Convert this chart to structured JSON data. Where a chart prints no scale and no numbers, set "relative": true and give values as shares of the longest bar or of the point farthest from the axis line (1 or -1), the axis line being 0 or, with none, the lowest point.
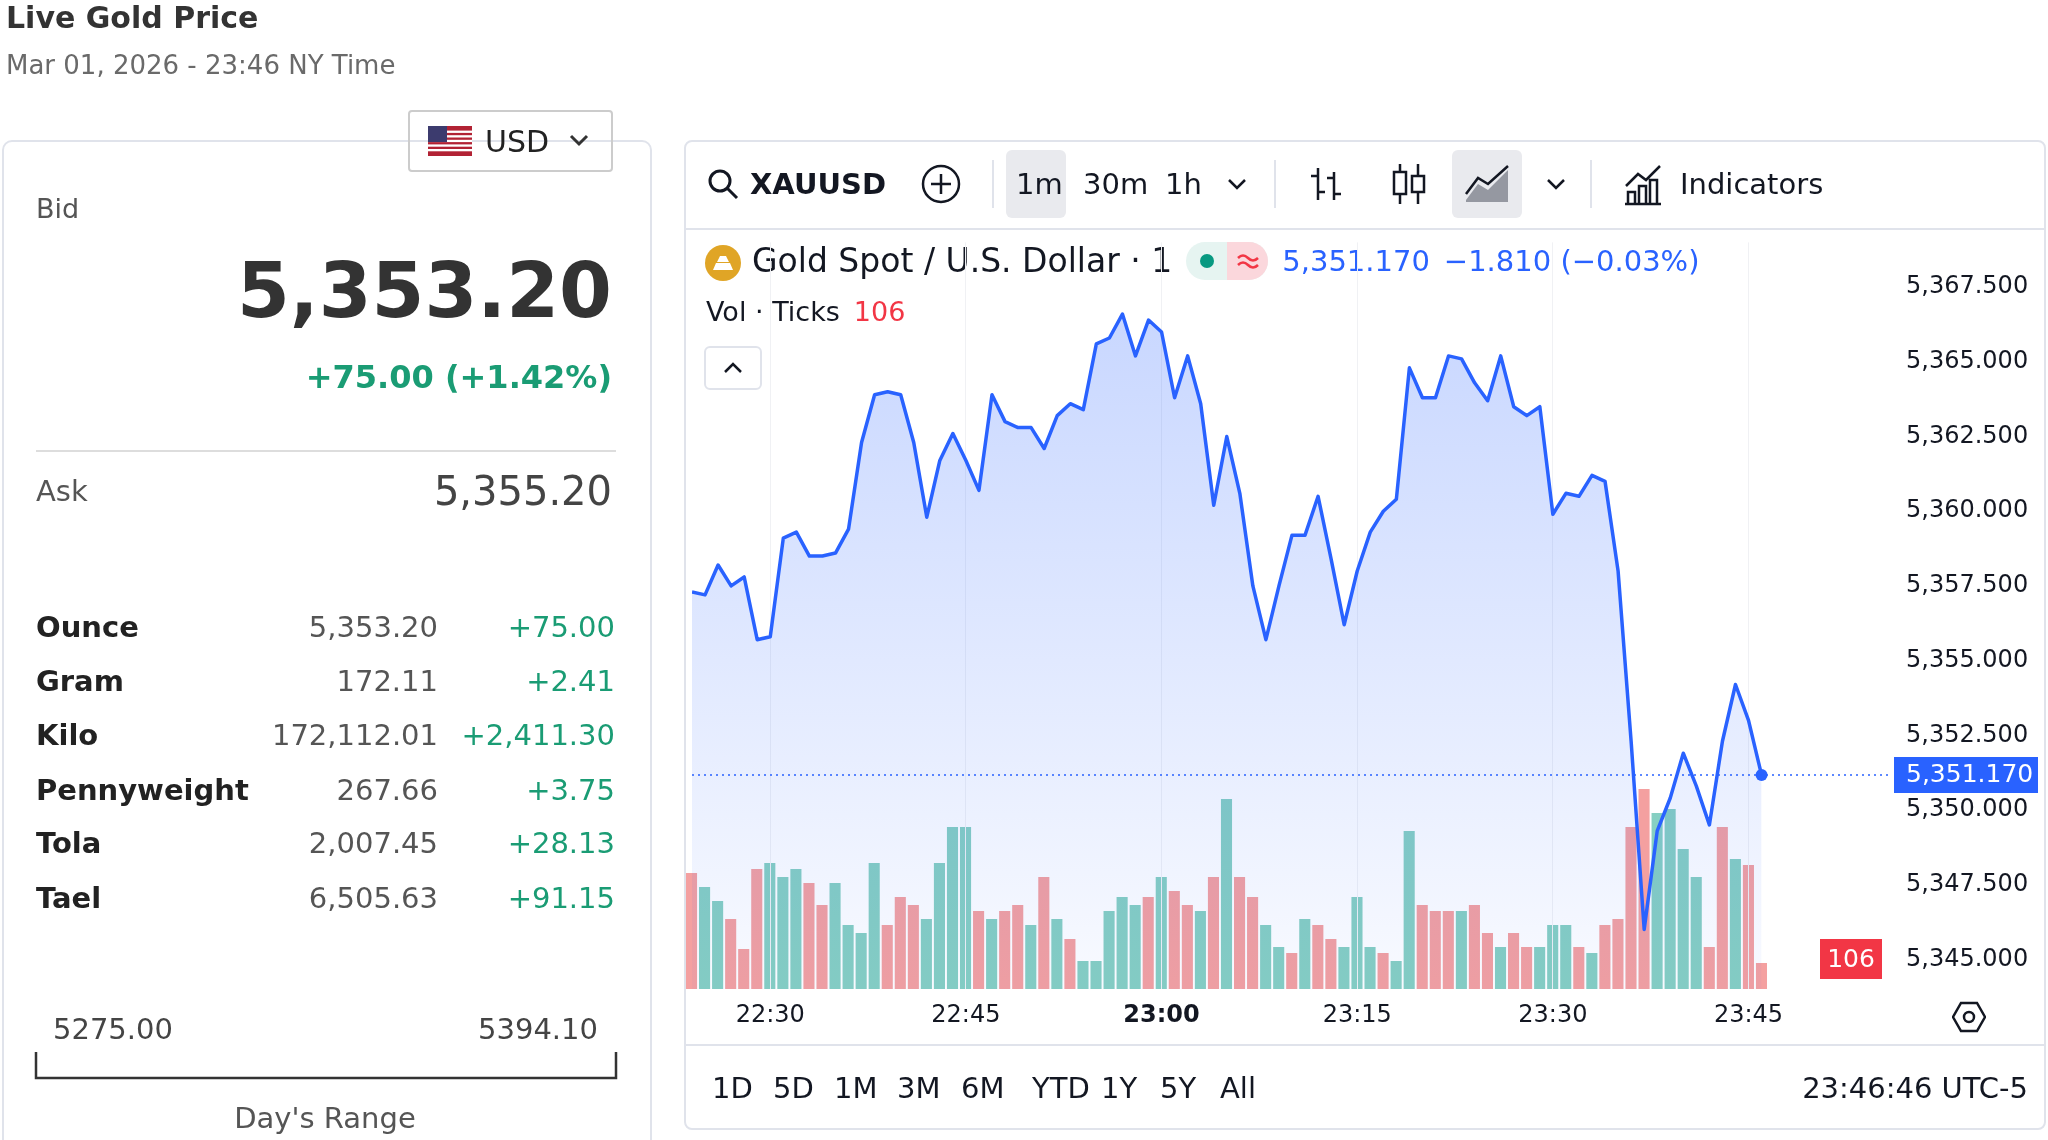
{
  "chart_data": [
    {
      "type": "other",
      "title": "Live Gold Price",
      "subtitle": "Mar 01, 2026 - 23:46 NY Time",
      "annotations": [
        "USD",
        "Bid",
        "5,353.20",
        "+75.00 (+1.42%)",
        "Ask",
        "5,355.20",
        "Ounce",
        "5,353.20",
        "+75.00",
        "Gram",
        "172.11",
        "+2.41",
        "Kilo",
        "172,112.01",
        "+2,411.30",
        "Pennyweight",
        "267.66",
        "+3.75",
        "Tola",
        "2,007.45",
        "+28.13",
        "Tael",
        "6,505.63",
        "+91.15",
        "5275.00",
        "5394.10",
        "Day's Range"
      ]
    },
    {
      "type": "area",
      "title": "Gold Spot / U.S. Dollar · 1",
      "color": "#2962ff",
      "annotations": [
        "XAUUSD",
        "1m",
        "30m",
        "1h",
        "Indicators",
        "5,351.170",
        "−1.810 (−0.03%)",
        "1D",
        "5D",
        "1M",
        "3M",
        "6M",
        "YTD",
        "1Y",
        "5Y",
        "All",
        "23:46:46 UTC-5"
      ],
      "x": [
        "2026-03-01T22:24",
        "2026-03-01T22:25",
        "2026-03-01T22:26",
        "2026-03-01T22:27",
        "2026-03-01T22:28",
        "2026-03-01T22:29",
        "2026-03-01T22:30",
        "2026-03-01T22:31",
        "2026-03-01T22:32",
        "2026-03-01T22:33",
        "2026-03-01T22:34",
        "2026-03-01T22:35",
        "2026-03-01T22:36",
        "2026-03-01T22:37",
        "2026-03-01T22:38",
        "2026-03-01T22:39",
        "2026-03-01T22:40",
        "2026-03-01T22:41",
        "2026-03-01T22:42",
        "2026-03-01T22:43",
        "2026-03-01T22:44",
        "2026-03-01T22:45",
        "2026-03-01T22:46",
        "2026-03-01T22:47",
        "2026-03-01T22:48",
        "2026-03-01T22:49",
        "2026-03-01T22:50",
        "2026-03-01T22:51",
        "2026-03-01T22:52",
        "2026-03-01T22:53",
        "2026-03-01T22:54",
        "2026-03-01T22:55",
        "2026-03-01T22:56",
        "2026-03-01T22:57",
        "2026-03-01T22:58",
        "2026-03-01T22:59",
        "2026-03-01T23:00",
        "2026-03-01T23:01",
        "2026-03-01T23:02",
        "2026-03-01T23:03",
        "2026-03-01T23:04",
        "2026-03-01T23:05",
        "2026-03-01T23:06",
        "2026-03-01T23:07",
        "2026-03-01T23:08",
        "2026-03-01T23:09",
        "2026-03-01T23:10",
        "2026-03-01T23:11",
        "2026-03-01T23:12",
        "2026-03-01T23:13",
        "2026-03-01T23:14",
        "2026-03-01T23:15",
        "2026-03-01T23:16",
        "2026-03-01T23:17",
        "2026-03-01T23:18",
        "2026-03-01T23:19",
        "2026-03-01T23:20",
        "2026-03-01T23:21",
        "2026-03-01T23:22",
        "2026-03-01T23:23",
        "2026-03-01T23:24",
        "2026-03-01T23:25",
        "2026-03-01T23:26",
        "2026-03-01T23:27",
        "2026-03-01T23:28",
        "2026-03-01T23:29",
        "2026-03-01T23:30",
        "2026-03-01T23:31",
        "2026-03-01T23:32",
        "2026-03-01T23:33",
        "2026-03-01T23:34",
        "2026-03-01T23:35",
        "2026-03-01T23:36",
        "2026-03-01T23:37",
        "2026-03-01T23:38",
        "2026-03-01T23:39",
        "2026-03-01T23:40",
        "2026-03-01T23:41",
        "2026-03-01T23:42",
        "2026-03-01T23:43",
        "2026-03-01T23:44",
        "2026-03-01T23:45",
        "2026-03-01T23:46"
      ],
      "values": [
        5357.3,
        5357.2,
        5358.2,
        5357.5,
        5357.8,
        5355.7,
        5355.8,
        5359.1,
        5359.3,
        5358.5,
        5358.5,
        5358.6,
        5359.4,
        5362.3,
        5363.9,
        5364.0,
        5363.9,
        5362.3,
        5359.8,
        5361.7,
        5362.6,
        5361.7,
        5360.7,
        5363.9,
        5363.0,
        5362.8,
        5362.8,
        5362.1,
        5363.2,
        5363.6,
        5363.4,
        5365.6,
        5365.8,
        5366.6,
        5365.2,
        5366.4,
        5366.0,
        5363.8,
        5365.2,
        5363.6,
        5360.2,
        5362.5,
        5360.6,
        5357.5,
        5355.7,
        5357.5,
        5359.2,
        5359.2,
        5360.5,
        5358.4,
        5356.2,
        5358.0,
        5359.3,
        5360.0,
        5360.4,
        5364.8,
        5363.8,
        5363.8,
        5365.2,
        5365.1,
        5364.3,
        5363.7,
        5365.2,
        5363.5,
        5363.2,
        5363.5,
        5359.9,
        5360.6,
        5360.5,
        5361.2,
        5361.0,
        5358.0,
        5352.3,
        5346.0,
        5349.3,
        5350.4,
        5351.9,
        5350.8,
        5349.5,
        5352.3,
        5354.2,
        5353.0,
        5351.17
      ],
      "xlim": [
        "2026-03-01T22:24",
        "2026-03-01T23:56"
      ],
      "xticks": [
        {
          "value": "2026-03-01T22:30",
          "label": "22:30"
        },
        {
          "value": "2026-03-01T22:45",
          "label": "22:45"
        },
        {
          "value": "2026-03-01T23:00",
          "label": "23:00"
        },
        {
          "value": "2026-03-01T23:15",
          "label": "23:15"
        },
        {
          "value": "2026-03-01T23:30",
          "label": "23:30"
        },
        {
          "value": "2026-03-01T23:45",
          "label": "23:45"
        }
      ],
      "ylim": [
        5344,
        5369
      ],
      "yticks": [
        {
          "value": 5345,
          "label": "5,345.000"
        },
        {
          "value": 5347.5,
          "label": "5,347.500"
        },
        {
          "value": 5350,
          "label": "5,350.000"
        },
        {
          "value": 5352.5,
          "label": "5,352.500"
        },
        {
          "value": 5355,
          "label": "5,355.000"
        },
        {
          "value": 5357.5,
          "label": "5,357.500"
        },
        {
          "value": 5360,
          "label": "5,360.000"
        },
        {
          "value": 5362.5,
          "label": "5,362.500"
        },
        {
          "value": 5365,
          "label": "5,365.000"
        },
        {
          "value": 5367.5,
          "label": "5,367.500"
        }
      ],
      "grid": "x",
      "ref_lines": [
        {
          "axis": "y",
          "value": 5351.17,
          "label": "5,351.170",
          "color": "#2962ff",
          "line_style": "dotted"
        }
      ]
    },
    {
      "type": "bar",
      "title": "Vol · Ticks",
      "relative": true,
      "annotations": [
        "106",
        "106"
      ],
      "categories": [
        null,
        null,
        null,
        null,
        null,
        null,
        null,
        null,
        null,
        null,
        null,
        null,
        null,
        null,
        null,
        null,
        null,
        null,
        null,
        null,
        null,
        null,
        null,
        null,
        null,
        null,
        null,
        null,
        null,
        null,
        null,
        null,
        null,
        null,
        null,
        null,
        null,
        null,
        null,
        null,
        null,
        null,
        null,
        null,
        null,
        null,
        null,
        null,
        null,
        null,
        null,
        null,
        null,
        null,
        null,
        null,
        null,
        null,
        null,
        null,
        null,
        null,
        null,
        null,
        null,
        null,
        null,
        null,
        null,
        null,
        null,
        null,
        null,
        null,
        null,
        null,
        null,
        null,
        null,
        null,
        null,
        null,
        null
      ],
      "values": [
        0.58,
        0.51,
        0.44,
        0.35,
        0.2,
        0.6,
        0.63,
        0.56,
        0.6,
        0.53,
        0.42,
        0.53,
        0.32,
        0.28,
        0.63,
        0.32,
        0.46,
        0.42,
        0.35,
        0.63,
        0.81,
        0.81,
        0.39,
        0.35,
        0.39,
        0.42,
        0.32,
        0.56,
        0.35,
        0.25,
        0.14,
        0.14,
        0.39,
        0.46,
        0.42,
        0.46,
        0.56,
        0.49,
        0.42,
        0.39,
        0.56,
        0.95,
        0.56,
        0.46,
        0.32,
        0.21,
        0.18,
        0.35,
        0.32,
        0.25,
        0.21,
        0.46,
        0.21,
        0.18,
        0.14,
        0.79,
        0.42,
        0.39,
        0.39,
        0.39,
        0.42,
        0.28,
        0.21,
        0.28,
        0.21,
        0.21,
        0.32,
        0.32,
        0.21,
        0.18,
        0.32,
        0.35,
        0.81,
        1,
        0.88,
        0.9,
        0.7,
        0.56,
        0.21,
        0.81,
        0.65,
        0.62,
        0.13
      ],
      "colors": [
        "#f4a0a0",
        "#86cfc2",
        "#86cfc2",
        "#f4a0a0",
        "#f4a0a0",
        "#f4a0a0",
        "#86cfc2",
        "#86cfc2",
        "#86cfc2",
        "#f4a0a0",
        "#f4a0a0",
        "#86cfc2",
        "#86cfc2",
        "#86cfc2",
        "#86cfc2",
        "#f4a0a0",
        "#f4a0a0",
        "#f4a0a0",
        "#86cfc2",
        "#86cfc2",
        "#86cfc2",
        "#86cfc2",
        "#f4a0a0",
        "#86cfc2",
        "#f4a0a0",
        "#f4a0a0",
        "#86cfc2",
        "#f4a0a0",
        "#86cfc2",
        "#f4a0a0",
        "#86cfc2",
        "#86cfc2",
        "#86cfc2",
        "#86cfc2",
        "#86cfc2",
        "#f4a0a0",
        "#86cfc2",
        "#f4a0a0",
        "#f4a0a0",
        "#86cfc2",
        "#f4a0a0",
        "#86cfc2",
        "#f4a0a0",
        "#f4a0a0",
        "#86cfc2",
        "#86cfc2",
        "#f4a0a0",
        "#86cfc2",
        "#f4a0a0",
        "#f4a0a0",
        "#86cfc2",
        "#86cfc2",
        "#86cfc2",
        "#f4a0a0",
        "#86cfc2",
        "#86cfc2",
        "#f4a0a0",
        "#f4a0a0",
        "#f4a0a0",
        "#86cfc2",
        "#f4a0a0",
        "#f4a0a0",
        "#86cfc2",
        "#f4a0a0",
        "#f4a0a0",
        "#86cfc2",
        "#86cfc2",
        "#86cfc2",
        "#f4a0a0",
        "#86cfc2",
        "#f4a0a0",
        "#f4a0a0",
        "#f4a0a0",
        "#f4a0a0",
        "#86cfc2",
        "#86cfc2",
        "#86cfc2",
        "#86cfc2",
        "#f4a0a0",
        "#f4a0a0",
        "#86cfc2",
        "#f4a0a0",
        "#f4a0a0"
      ]
    }
  ]
}
